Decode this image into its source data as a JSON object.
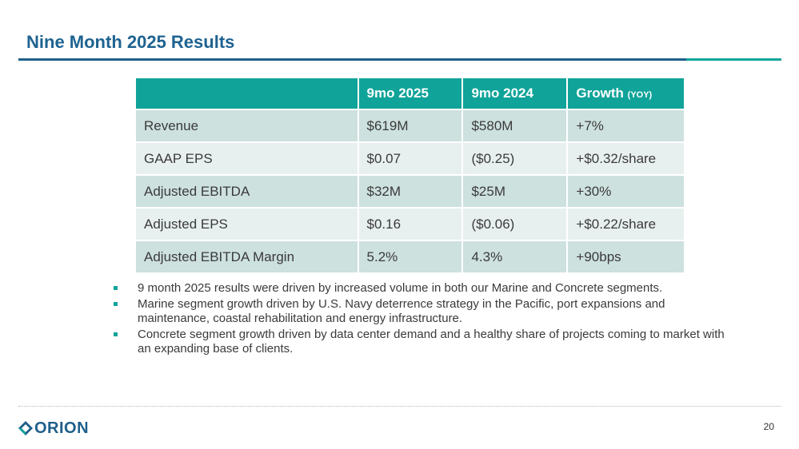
{
  "slide": {
    "title": "Nine Month 2025 Results",
    "page_number": "20"
  },
  "colors": {
    "title": "#1f6391",
    "header_bg": "#0fa39a",
    "row_dark": "#cde2de",
    "row_light": "#e8f0ef",
    "rule_main": "#1f5f8b",
    "rule_accent": "#12a39a",
    "bullet_marker": "#12a39a"
  },
  "table": {
    "headers": {
      "metric": "",
      "col_a": "9mo 2025",
      "col_b": "9mo 2024",
      "col_c": "Growth",
      "col_c_suffix": "(YOY)"
    },
    "rows": [
      {
        "metric": "Revenue",
        "a": "$619M",
        "b": "$580M",
        "c": "+7%"
      },
      {
        "metric": "GAAP EPS",
        "a": "$0.07",
        "b": "($0.25)",
        "c": "+$0.32/share"
      },
      {
        "metric": "Adjusted EBITDA",
        "a": "$32M",
        "b": "$25M",
        "c": "+30%"
      },
      {
        "metric": "Adjusted EPS",
        "a": "$0.16",
        "b": "($0.06)",
        "c": "+$0.22/share"
      },
      {
        "metric": "Adjusted EBITDA Margin",
        "a": "5.2%",
        "b": "4.3%",
        "c": "+90bps"
      }
    ]
  },
  "bullets": [
    "9 month 2025 results were driven by increased volume in both our Marine and Concrete segments.",
    "Marine segment growth driven by U.S. Navy deterrence strategy in the Pacific, port expansions and maintenance, coastal rehabilitation and energy infrastructure.",
    "Concrete segment growth driven by data center demand and a healthy share of projects coming to market with an expanding base of clients."
  ],
  "logo": {
    "text": "ORION",
    "icon": "orion-logo-icon"
  }
}
